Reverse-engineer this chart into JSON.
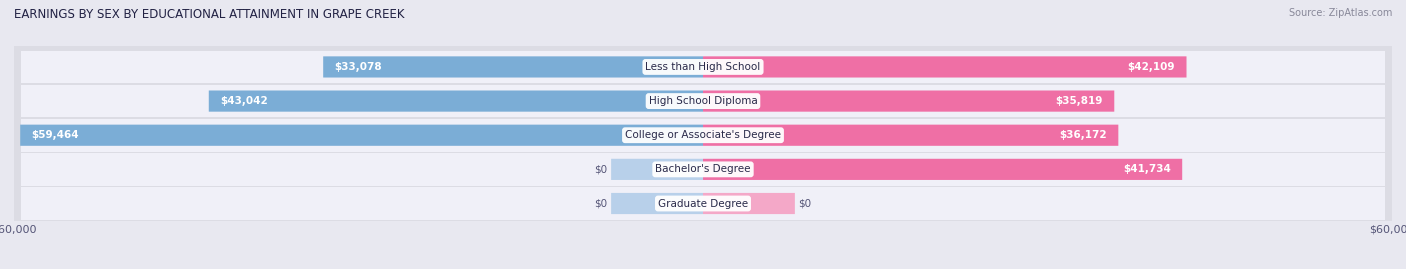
{
  "title": "EARNINGS BY SEX BY EDUCATIONAL ATTAINMENT IN GRAPE CREEK",
  "source": "Source: ZipAtlas.com",
  "categories": [
    "Less than High School",
    "High School Diploma",
    "College or Associate's Degree",
    "Bachelor's Degree",
    "Graduate Degree"
  ],
  "male_values": [
    33078,
    43042,
    59464,
    0,
    0
  ],
  "female_values": [
    42109,
    35819,
    36172,
    41734,
    0
  ],
  "male_color": "#7BADD6",
  "female_color": "#EF6FA5",
  "male_color_zero": "#B8D0EA",
  "female_color_zero": "#F4A8C8",
  "max_value": 60000,
  "zero_stub": 8000,
  "bar_height": 0.62,
  "row_bg_outer": "#dcdce4",
  "row_bg_inner": "#f0f0f8",
  "fig_bg": "#e8e8f0"
}
